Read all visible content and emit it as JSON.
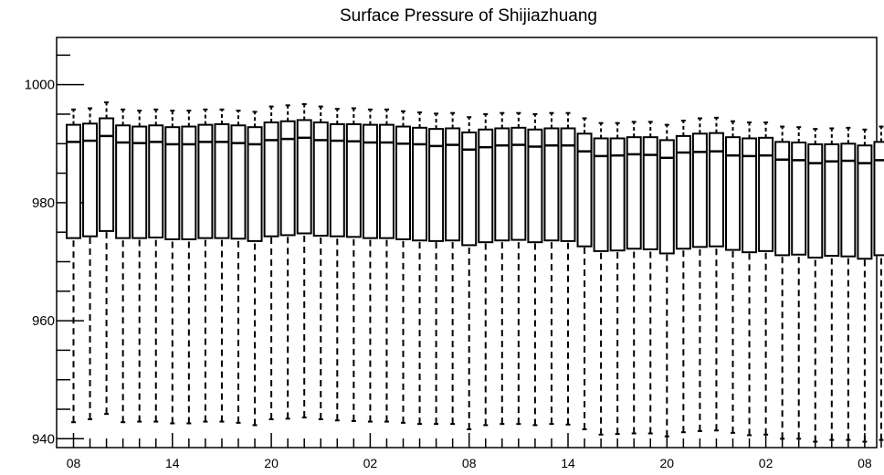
{
  "chart_data": {
    "type": "box",
    "title": "Surface Pressure of Shijiazhuang",
    "xlabel": "",
    "ylabel": "",
    "ylim": [
      938.5,
      1008
    ],
    "yticks": [
      940,
      960,
      980,
      1000
    ],
    "ytick_labels": [
      "940",
      "960",
      "980",
      "1000"
    ],
    "xtick_labels": [
      "08",
      "14",
      "20",
      "02",
      "08",
      "14",
      "20",
      "02",
      "08"
    ],
    "xtick_label_indices": [
      0,
      6,
      12,
      18,
      24,
      30,
      36,
      42,
      48
    ],
    "grid": false,
    "colors": {
      "stroke": "#000000",
      "background": "#ffffff"
    },
    "series": [
      {
        "median": [
          990.3,
          990.5,
          991.3,
          990.2,
          990.1,
          990.3,
          989.9,
          989.9,
          990.3,
          990.3,
          990.1,
          989.9,
          990.6,
          990.8,
          991.0,
          990.6,
          990.5,
          990.4,
          990.2,
          990.2,
          990.0,
          989.9,
          989.6,
          989.8,
          989.0,
          989.4,
          989.7,
          989.8,
          989.5,
          989.7,
          989.7,
          988.7,
          987.9,
          988.0,
          988.2,
          988.1,
          987.6,
          988.5,
          988.6,
          988.7,
          988.0,
          987.9,
          988.0,
          987.3,
          987.2,
          986.7,
          987.0,
          987.1,
          986.7,
          987.2
        ],
        "q1": [
          974.0,
          974.3,
          975.2,
          974.0,
          974.0,
          974.1,
          973.8,
          973.8,
          974.0,
          974.0,
          973.9,
          973.5,
          974.3,
          974.5,
          974.8,
          974.4,
          974.3,
          974.2,
          974.0,
          974.0,
          973.8,
          973.6,
          973.5,
          973.6,
          972.8,
          973.3,
          973.6,
          973.7,
          973.3,
          973.6,
          973.5,
          972.6,
          971.8,
          971.9,
          972.2,
          972.1,
          971.4,
          972.2,
          972.5,
          972.6,
          972.0,
          971.6,
          971.8,
          971.1,
          971.2,
          970.7,
          971.0,
          970.9,
          970.5,
          971.1
        ],
        "q3": [
          993.2,
          993.4,
          994.3,
          993.1,
          992.9,
          993.1,
          992.8,
          992.9,
          993.2,
          993.3,
          993.1,
          992.8,
          993.6,
          993.8,
          994.0,
          993.6,
          993.3,
          993.3,
          993.2,
          993.2,
          992.9,
          992.7,
          992.5,
          992.6,
          991.9,
          992.4,
          992.6,
          992.7,
          992.4,
          992.6,
          992.6,
          991.7,
          990.9,
          990.9,
          991.1,
          991.1,
          990.6,
          991.3,
          991.7,
          991.8,
          991.1,
          990.9,
          991.0,
          990.3,
          990.2,
          989.9,
          989.9,
          990.0,
          989.7,
          990.3
        ],
        "whisker_low": [
          942.8,
          943.3,
          944.2,
          942.8,
          942.9,
          942.9,
          942.6,
          942.6,
          942.9,
          942.9,
          942.7,
          942.3,
          943.3,
          943.4,
          943.6,
          943.3,
          943.1,
          943.0,
          942.9,
          942.9,
          942.7,
          942.5,
          942.5,
          942.5,
          941.6,
          942.3,
          942.5,
          942.5,
          942.3,
          942.5,
          942.4,
          941.6,
          940.7,
          940.8,
          940.9,
          940.9,
          940.4,
          941.1,
          941.3,
          941.4,
          941.0,
          940.6,
          940.7,
          940.0,
          940.0,
          939.5,
          939.8,
          939.8,
          939.5,
          939.8
        ],
        "whisker_high": [
          995.8,
          996.0,
          997.0,
          995.8,
          995.6,
          995.8,
          995.6,
          995.6,
          995.8,
          995.8,
          995.6,
          995.4,
          996.3,
          996.5,
          996.7,
          996.3,
          995.9,
          996.0,
          995.8,
          995.8,
          995.5,
          995.3,
          995.1,
          995.2,
          994.5,
          995.0,
          995.2,
          995.2,
          995.0,
          995.2,
          995.2,
          994.3,
          993.5,
          993.5,
          993.7,
          993.7,
          993.2,
          993.9,
          994.3,
          994.4,
          993.8,
          993.6,
          993.6,
          992.9,
          992.8,
          992.5,
          992.6,
          992.7,
          992.4,
          992.9
        ]
      }
    ]
  }
}
